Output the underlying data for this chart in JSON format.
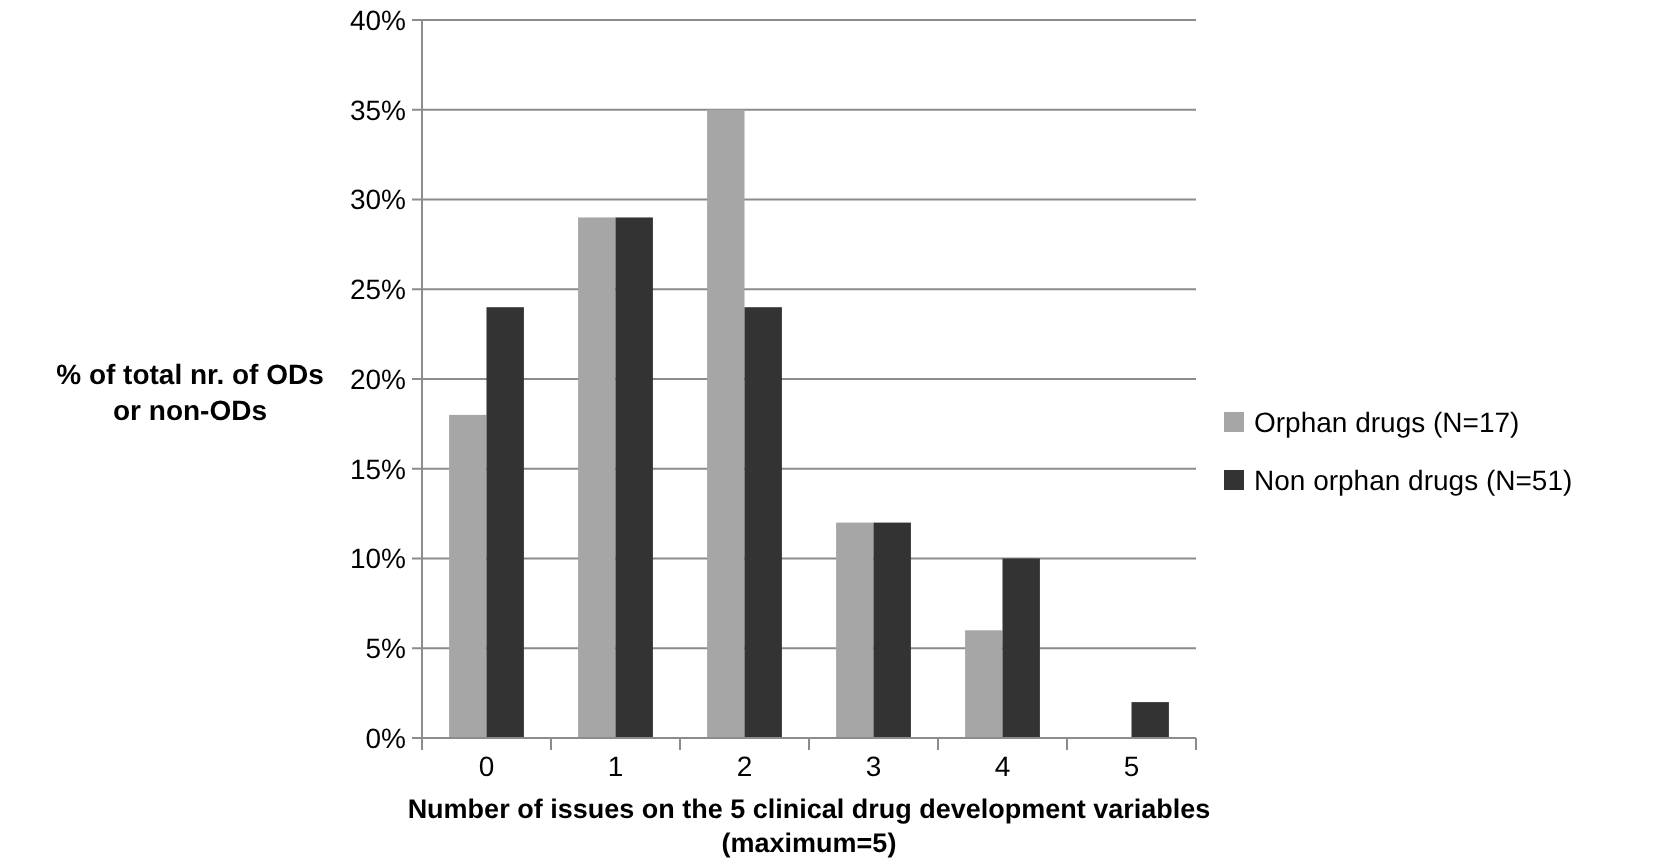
{
  "chart_data": {
    "type": "bar",
    "xlabel": "Number of issues on the 5 clinical drug development variables\n(maximum=5)",
    "ylabel": "% of total nr. of ODs\nor non-ODs",
    "categories": [
      "0",
      "1",
      "2",
      "3",
      "4",
      "5"
    ],
    "series": [
      {
        "name": "Orphan drugs (N=17)",
        "color": "#a6a6a6",
        "values": [
          18,
          29,
          35,
          12,
          6,
          0
        ]
      },
      {
        "name": "Non orphan drugs (N=51)",
        "color": "#333333",
        "values": [
          24,
          29,
          24,
          12,
          10,
          2
        ]
      }
    ],
    "ylim": [
      0,
      40
    ],
    "yticks": [
      {
        "value": 0,
        "label": "0%"
      },
      {
        "value": 5,
        "label": "5%"
      },
      {
        "value": 10,
        "label": "10%"
      },
      {
        "value": 15,
        "label": "15%"
      },
      {
        "value": 20,
        "label": "20%"
      },
      {
        "value": 25,
        "label": "25%"
      },
      {
        "value": 30,
        "label": "30%"
      },
      {
        "value": 35,
        "label": "35%"
      },
      {
        "value": 40,
        "label": "40%"
      }
    ],
    "grid": "y",
    "legend": "right"
  }
}
